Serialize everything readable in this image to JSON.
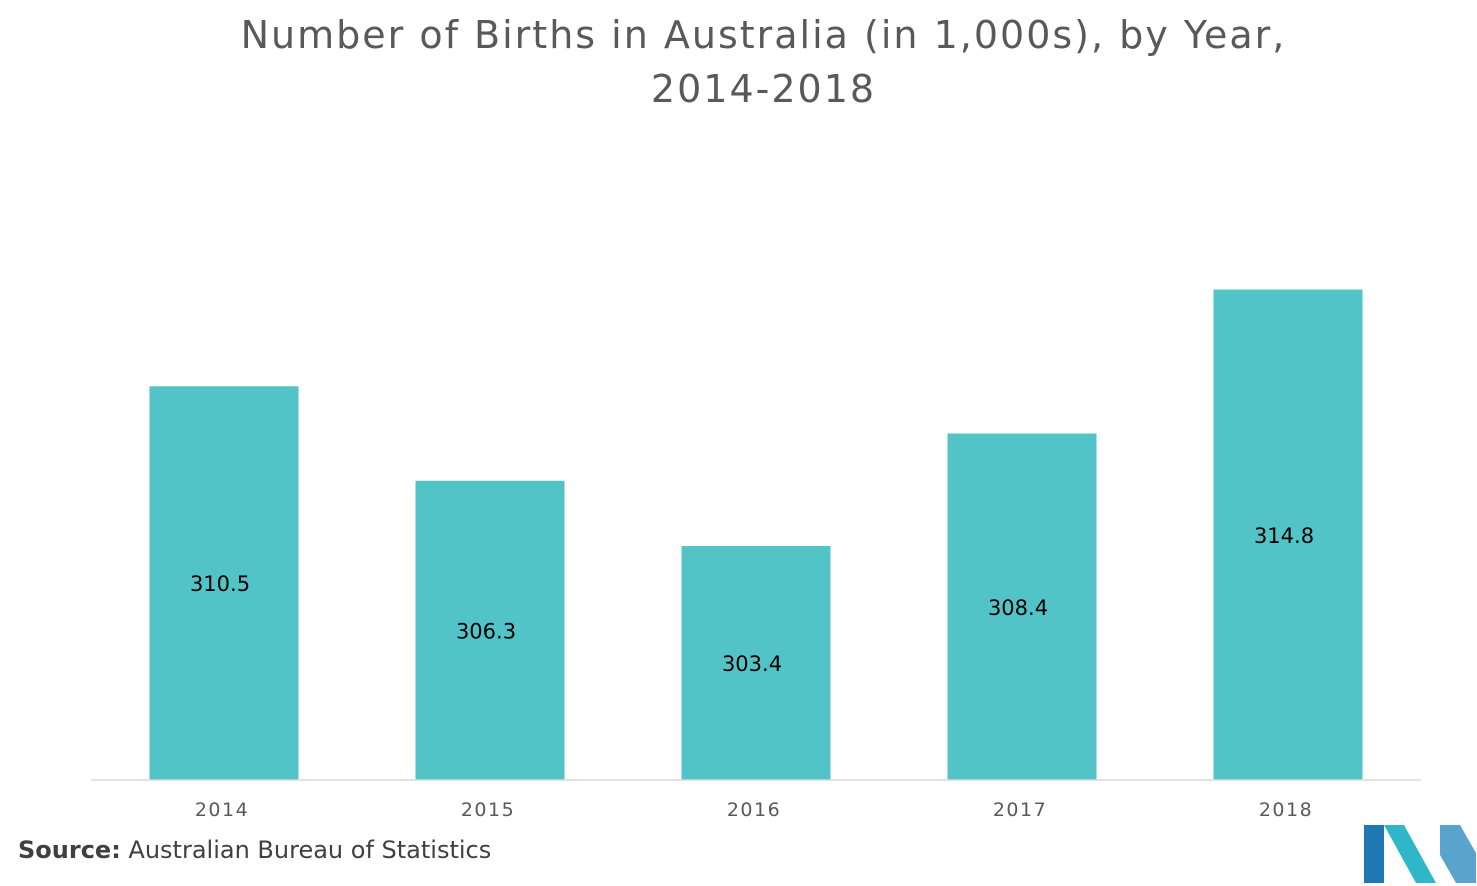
{
  "chart_data": {
    "type": "bar",
    "title_lines": [
      "Number of Births in Australia (in 1,000s), by Year,",
      "2014-2018"
    ],
    "categories": [
      "2014",
      "2015",
      "2016",
      "2017",
      "2018"
    ],
    "values": [
      310.5,
      306.3,
      303.4,
      308.4,
      314.8
    ],
    "value_labels": [
      "310.5",
      "306.3",
      "303.4",
      "308.4",
      "314.8"
    ],
    "bar_color": "#52c4c8",
    "axis_color": "#d9d9d9",
    "grid": false,
    "legend": "none",
    "ylim": [
      293,
      319
    ]
  },
  "source": {
    "label": "Source:",
    "text": " Australian Bureau of Statistics"
  },
  "logo": {
    "colors": [
      "#1f77b4",
      "#2fb6c9",
      "#5aa3cf"
    ]
  }
}
